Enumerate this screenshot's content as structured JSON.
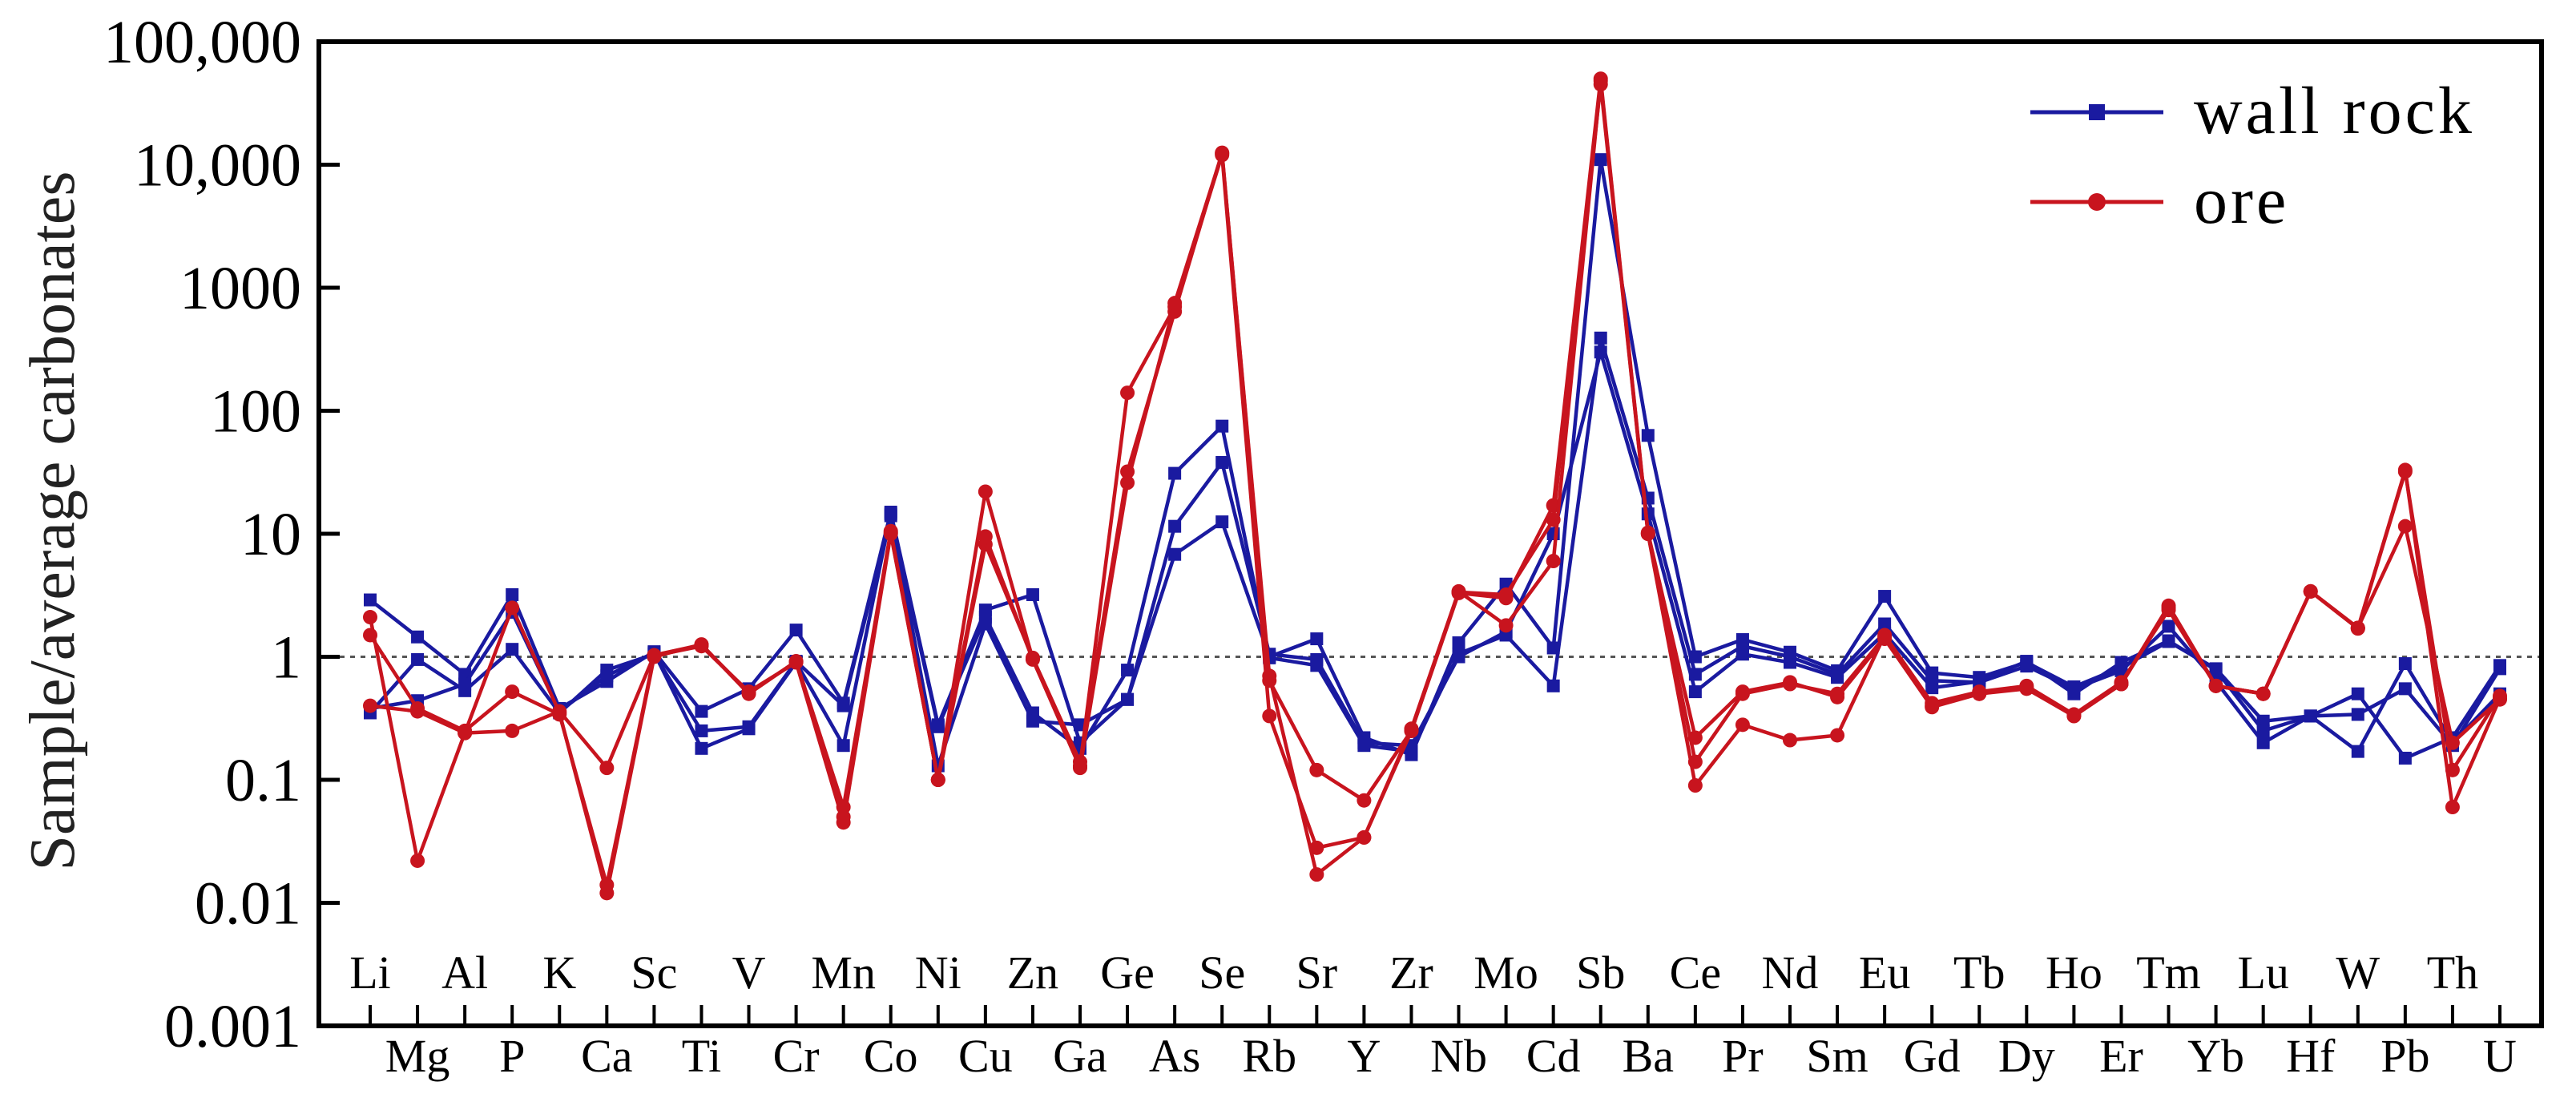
{
  "chart_data": {
    "type": "line",
    "title": "",
    "xlabel": "",
    "ylabel": "Sample/average carbonates",
    "yscale": "log",
    "ylim": [
      0.001,
      100000
    ],
    "reference_line": 1,
    "y_tick_labels": [
      "0.001",
      "0.01",
      "0.1",
      "1",
      "10",
      "100",
      "1000",
      "10,000",
      "100,000"
    ],
    "categories": [
      "Li",
      "Mg",
      "Al",
      "P",
      "K",
      "Ca",
      "Sc",
      "Ti",
      "V",
      "Cr",
      "Mn",
      "Co",
      "Ni",
      "Cu",
      "Zn",
      "Ga",
      "Ge",
      "As",
      "Se",
      "Rb",
      "Sr",
      "Y",
      "Zr",
      "Nb",
      "Mo",
      "Cd",
      "Sb",
      "Ba",
      "Ce",
      "Pr",
      "Nd",
      "Sm",
      "Eu",
      "Gd",
      "Tb",
      "Dy",
      "Ho",
      "Er",
      "Tm",
      "Yb",
      "Lu",
      "Hf",
      "W",
      "Pb",
      "Th",
      "U"
    ],
    "legend": {
      "position": "top-right"
    },
    "colors": {
      "wall_rock": "#1a1aa0",
      "ore": "#c8141e",
      "axis": "#000000",
      "reference": "#555555"
    },
    "series": [
      {
        "name": "wall rock",
        "group": "wall_rock",
        "marker": "square",
        "values": [
          2.9,
          1.45,
          0.72,
          3.2,
          0.38,
          0.63,
          1.1,
          0.36,
          0.55,
          1.65,
          0.42,
          15.0,
          0.28,
          2.4,
          3.2,
          0.2,
          0.45,
          6.8,
          12.5,
          1.0,
          1.4,
          0.22,
          0.16,
          1.3,
          3.9,
          1.18,
          11000,
          63,
          1.0,
          1.38,
          1.09,
          0.77,
          3.1,
          0.74,
          0.68,
          0.9,
          0.57,
          0.82,
          1.33,
          0.8,
          0.3,
          0.33,
          0.34,
          0.55,
          0.19,
          0.8
        ]
      },
      {
        "name": "wall rock",
        "group": "wall_rock",
        "marker": "square",
        "values": [
          0.35,
          0.95,
          0.53,
          1.15,
          0.35,
          0.78,
          1.05,
          0.25,
          0.27,
          0.92,
          0.4,
          14.0,
          0.27,
          2.1,
          0.35,
          0.18,
          0.78,
          31.0,
          75.0,
          0.98,
          0.85,
          0.19,
          0.17,
          1.06,
          1.5,
          0.58,
          390,
          19.5,
          0.72,
          1.22,
          1.0,
          0.72,
          1.85,
          0.64,
          0.62,
          0.84,
          0.55,
          0.77,
          1.77,
          0.63,
          0.2,
          0.33,
          0.17,
          0.88,
          0.2,
          0.5
        ]
      },
      {
        "name": "wall rock",
        "group": "wall_rock",
        "marker": "square",
        "values": [
          0.38,
          0.44,
          0.6,
          2.3,
          0.36,
          0.7,
          1.08,
          0.18,
          0.26,
          0.9,
          0.19,
          14.5,
          0.13,
          1.85,
          0.3,
          0.28,
          0.45,
          11.5,
          38.0,
          1.05,
          0.95,
          0.2,
          0.19,
          1.0,
          1.6,
          10.0,
          300,
          14.5,
          0.52,
          1.05,
          0.9,
          0.68,
          1.55,
          0.56,
          0.63,
          0.92,
          0.5,
          0.9,
          1.35,
          0.78,
          0.25,
          0.33,
          0.5,
          0.15,
          0.22,
          0.85
        ]
      },
      {
        "name": "ore",
        "group": "ore",
        "marker": "circle",
        "values": [
          2.1,
          0.022,
          0.24,
          2.5,
          0.35,
          0.012,
          1.0,
          1.26,
          0.5,
          0.92,
          0.06,
          10.5,
          0.1,
          8.2,
          0.98,
          0.14,
          32.0,
          640,
          12500,
          0.64,
          0.12,
          0.068,
          0.25,
          3.3,
          3.0,
          17.0,
          50000,
          10.2,
          0.22,
          0.52,
          0.62,
          0.47,
          1.4,
          0.39,
          0.5,
          0.55,
          0.33,
          0.6,
          2.6,
          0.58,
          0.5,
          3.4,
          1.72,
          11.5,
          0.2,
          0.45
        ]
      },
      {
        "name": "ore",
        "group": "ore",
        "marker": "circle",
        "values": [
          1.5,
          0.38,
          0.25,
          0.52,
          0.34,
          0.014,
          1.02,
          1.22,
          0.52,
          0.9,
          0.045,
          10.0,
          0.1,
          9.5,
          0.95,
          0.13,
          140,
          700,
          12000,
          0.33,
          0.028,
          0.034,
          0.26,
          3.4,
          1.8,
          6.0,
          48000,
          10.0,
          0.09,
          0.28,
          0.21,
          0.23,
          1.5,
          0.42,
          0.52,
          0.58,
          0.34,
          0.62,
          2.4,
          0.58,
          0.5,
          3.4,
          1.7,
          33.0,
          0.06,
          0.46
        ]
      },
      {
        "name": "ore",
        "group": "ore",
        "marker": "circle",
        "values": [
          0.4,
          0.36,
          0.24,
          0.25,
          0.36,
          0.125,
          1.03,
          1.25,
          0.51,
          0.91,
          0.05,
          10.2,
          0.1,
          22.0,
          0.96,
          0.125,
          26.0,
          750,
          12300,
          0.7,
          0.017,
          0.034,
          0.25,
          3.35,
          3.2,
          13.0,
          45000,
          10.0,
          0.14,
          0.5,
          0.6,
          0.5,
          1.45,
          0.4,
          0.5,
          0.56,
          0.33,
          0.6,
          2.5,
          0.58,
          0.5,
          3.4,
          1.7,
          32.0,
          0.12,
          0.48
        ]
      }
    ]
  }
}
